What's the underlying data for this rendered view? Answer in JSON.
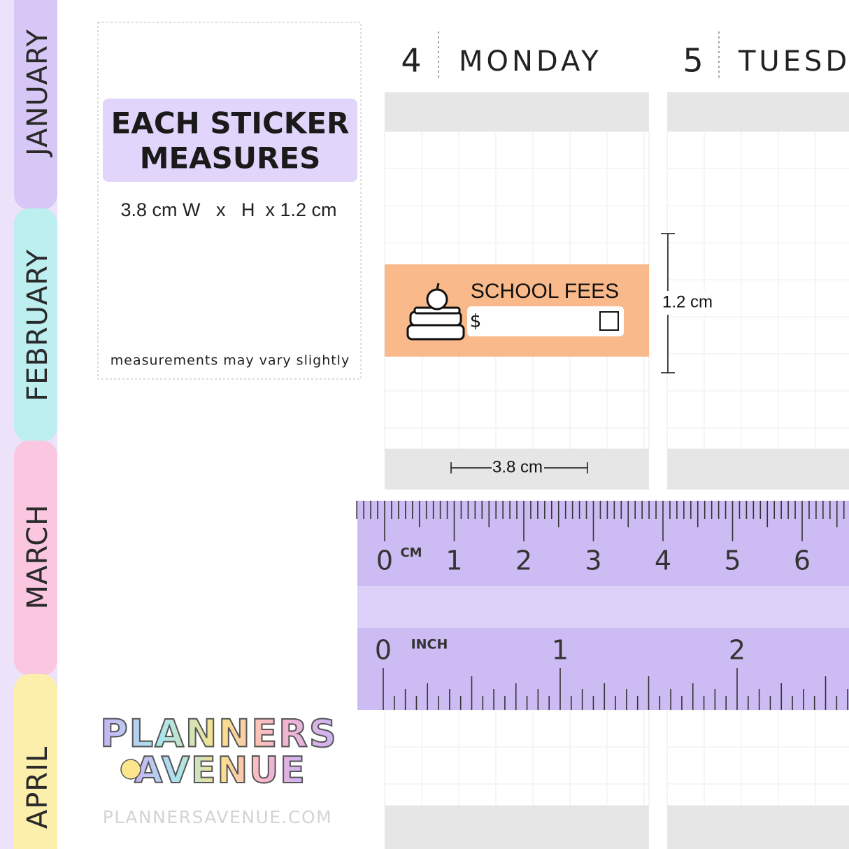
{
  "tabs": [
    "JANUARY",
    "FEBRUARY",
    "MARCH",
    "APRIL"
  ],
  "info_box": {
    "title_line1": "EACH STICKER",
    "title_line2": "MEASURES",
    "size": "3.8 cm W   x   H  x 1.2 cm",
    "note": "measurements may vary slightly"
  },
  "days": [
    {
      "number": "4",
      "name": "MONDAY"
    },
    {
      "number": "5",
      "name": "TUESDAY"
    }
  ],
  "sticker": {
    "label": "SCHOOL FEES",
    "currency": "$"
  },
  "dimensions": {
    "height": "1.2 cm",
    "width": "3.8 cm"
  },
  "ruler": {
    "cm_unit": "CM",
    "cm_labels": [
      "0",
      "1",
      "2",
      "3",
      "4",
      "5",
      "6"
    ],
    "inch_unit": "INCH",
    "inch_labels": [
      "0",
      "1",
      "2"
    ]
  },
  "logo": {
    "line1": "PLANNERS",
    "line2": "AVENUE"
  },
  "footer": "PLANNERSAVENUE.COM"
}
